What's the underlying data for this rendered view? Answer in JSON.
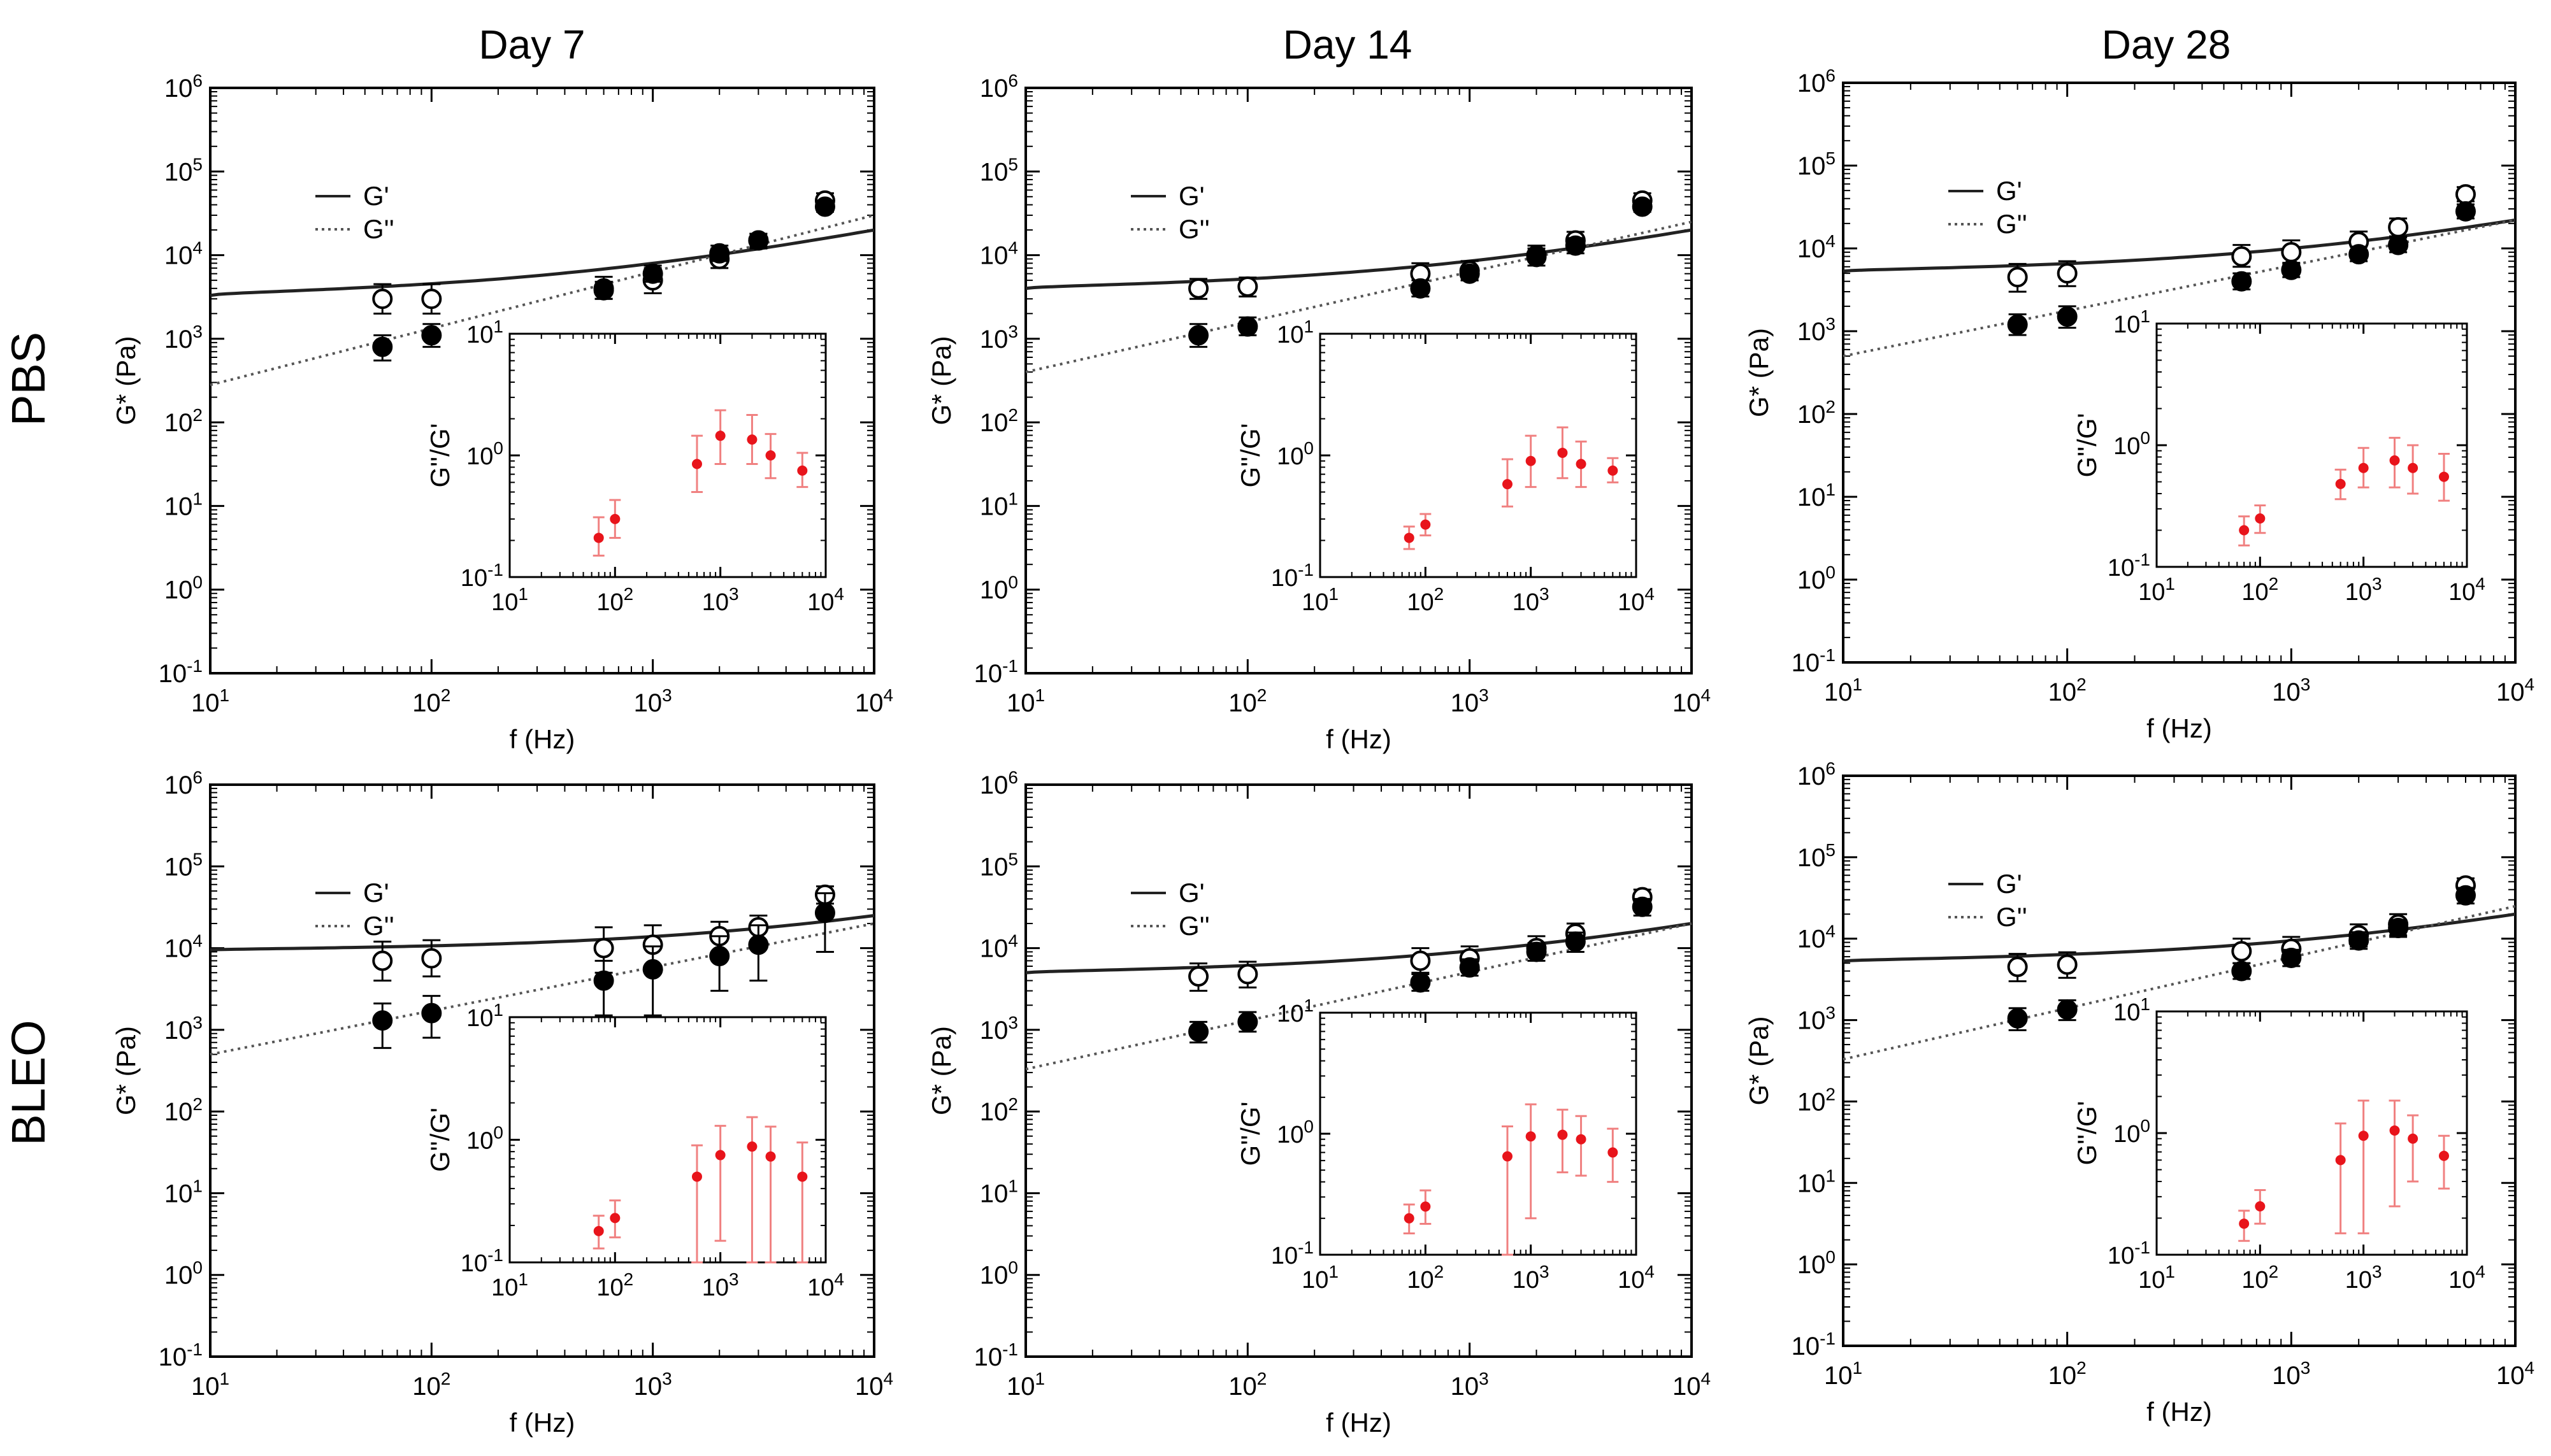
{
  "figure": {
    "columns": [
      "Day 7",
      "Day 14",
      "Day 28"
    ],
    "rows": [
      "PBS",
      "BLEO"
    ]
  },
  "chart_data": [
    {
      "type": "scatter",
      "id": "pbs-day7",
      "row": "PBS",
      "column": "Day 7",
      "title": "",
      "xlabel": "f (Hz)",
      "ylabel": "G* (Pa)",
      "xscale": "log",
      "yscale": "log",
      "xlim": [
        10,
        10000
      ],
      "ylim": [
        0.1,
        1000000
      ],
      "legend": {
        "position": "upper-left",
        "entries": [
          "G'",
          "G''"
        ]
      },
      "series": [
        {
          "name": "G' (open)",
          "x": [
            60,
            100,
            600,
            1000,
            2000,
            3000,
            6000
          ],
          "y": [
            3000,
            3000,
            4000,
            5000,
            9000,
            15000,
            45000
          ],
          "err_lo": [
            1000,
            1000,
            1000,
            1500,
            2000,
            3000,
            8000
          ],
          "err_hi": [
            1500,
            1500,
            1500,
            2000,
            3000,
            3000,
            10000
          ]
        },
        {
          "name": "G'' (filled)",
          "x": [
            60,
            100,
            600,
            1000,
            2000,
            3000,
            6000
          ],
          "y": [
            800,
            1100,
            3800,
            6000,
            10500,
            15000,
            38000
          ],
          "err_lo": [
            250,
            300,
            800,
            1200,
            2000,
            2500,
            5000
          ],
          "err_hi": [
            300,
            400,
            1000,
            1500,
            2500,
            3000,
            6000
          ]
        }
      ],
      "fit": {
        "gp_start": 3300,
        "gp_end": 20000,
        "gpp_start": 280,
        "gpp_end": 30000
      },
      "inset": {
        "ylabel": "G''/G'",
        "xlim": [
          10,
          10000
        ],
        "ylim": [
          0.1,
          10
        ],
        "x": [
          70,
          100,
          600,
          1000,
          2000,
          3000,
          6000
        ],
        "y": [
          0.21,
          0.3,
          0.85,
          1.45,
          1.35,
          1.0,
          0.75
        ],
        "err_lo": [
          0.06,
          0.09,
          0.35,
          0.6,
          0.5,
          0.35,
          0.2
        ],
        "err_hi": [
          0.1,
          0.13,
          0.6,
          0.9,
          0.8,
          0.5,
          0.3
        ]
      }
    },
    {
      "type": "scatter",
      "id": "pbs-day14",
      "row": "PBS",
      "column": "Day 14",
      "title": "",
      "xlabel": "f (Hz)",
      "ylabel": "G* (Pa)",
      "xscale": "log",
      "yscale": "log",
      "xlim": [
        10,
        10000
      ],
      "ylim": [
        0.1,
        1000000
      ],
      "legend": {
        "position": "upper-left",
        "entries": [
          "G'",
          "G''"
        ]
      },
      "series": [
        {
          "name": "G' (open)",
          "x": [
            60,
            100,
            600,
            1000,
            2000,
            3000,
            6000
          ],
          "y": [
            4000,
            4200,
            6000,
            6500,
            10000,
            15000,
            45000
          ],
          "err_lo": [
            1000,
            1000,
            1500,
            1500,
            2500,
            3000,
            8000
          ],
          "err_hi": [
            1200,
            1200,
            2000,
            2000,
            3000,
            4000,
            10000
          ]
        },
        {
          "name": "G'' (filled)",
          "x": [
            60,
            100,
            600,
            1000,
            2000,
            3000,
            6000
          ],
          "y": [
            1100,
            1400,
            4000,
            6000,
            9500,
            13000,
            38000
          ],
          "err_lo": [
            300,
            300,
            800,
            1000,
            2000,
            2500,
            5000
          ],
          "err_hi": [
            400,
            400,
            1000,
            1200,
            2500,
            3000,
            6000
          ]
        }
      ],
      "fit": {
        "gp_start": 4000,
        "gp_end": 20000,
        "gpp_start": 400,
        "gpp_end": 25000
      },
      "inset": {
        "ylabel": "G''/G'",
        "xlim": [
          10,
          10000
        ],
        "ylim": [
          0.1,
          10
        ],
        "x": [
          70,
          100,
          600,
          1000,
          2000,
          3000,
          6000
        ],
        "y": [
          0.21,
          0.27,
          0.58,
          0.9,
          1.05,
          0.85,
          0.75
        ],
        "err_lo": [
          0.04,
          0.05,
          0.2,
          0.35,
          0.4,
          0.3,
          0.15
        ],
        "err_hi": [
          0.05,
          0.06,
          0.35,
          0.55,
          0.65,
          0.45,
          0.2
        ]
      }
    },
    {
      "type": "scatter",
      "id": "pbs-day28",
      "row": "PBS",
      "column": "Day 28",
      "title": "",
      "xlabel": "f (Hz)",
      "ylabel": "G* (Pa)",
      "xscale": "log",
      "yscale": "log",
      "xlim": [
        10,
        10000
      ],
      "ylim": [
        0.1,
        1000000
      ],
      "legend": {
        "position": "upper-left",
        "entries": [
          "G'",
          "G''"
        ]
      },
      "series": [
        {
          "name": "G' (open)",
          "x": [
            60,
            100,
            600,
            1000,
            2000,
            3000,
            6000
          ],
          "y": [
            4500,
            5000,
            8000,
            9000,
            12000,
            18000,
            45000
          ],
          "err_lo": [
            1500,
            1500,
            2000,
            2500,
            3000,
            4000,
            8000
          ],
          "err_hi": [
            2000,
            2000,
            3000,
            3500,
            4000,
            5000,
            10000
          ]
        },
        {
          "name": "G'' (filled)",
          "x": [
            60,
            100,
            600,
            1000,
            2000,
            3000,
            6000
          ],
          "y": [
            1200,
            1500,
            4000,
            5500,
            8500,
            11000,
            28000
          ],
          "err_lo": [
            300,
            400,
            800,
            1000,
            1500,
            2000,
            5000
          ],
          "err_hi": [
            400,
            500,
            1000,
            1200,
            2000,
            2500,
            6000
          ]
        }
      ],
      "fit": {
        "gp_start": 5300,
        "gp_end": 22000,
        "gpp_start": 500,
        "gpp_end": 22000
      },
      "inset": {
        "ylabel": "G''/G'",
        "xlim": [
          10,
          10000
        ],
        "ylim": [
          0.1,
          10
        ],
        "x": [
          70,
          100,
          600,
          1000,
          2000,
          3000,
          6000
        ],
        "y": [
          0.2,
          0.25,
          0.48,
          0.65,
          0.75,
          0.65,
          0.55
        ],
        "err_lo": [
          0.05,
          0.06,
          0.12,
          0.2,
          0.3,
          0.25,
          0.2
        ],
        "err_hi": [
          0.06,
          0.07,
          0.15,
          0.3,
          0.4,
          0.35,
          0.3
        ]
      }
    },
    {
      "type": "scatter",
      "id": "bleo-day7",
      "row": "BLEO",
      "column": "Day 7",
      "title": "",
      "xlabel": "f (Hz)",
      "ylabel": "G* (Pa)",
      "xscale": "log",
      "yscale": "log",
      "xlim": [
        10,
        10000
      ],
      "ylim": [
        0.1,
        1000000
      ],
      "legend": {
        "position": "upper-left",
        "entries": [
          "G'",
          "G''"
        ]
      },
      "series": [
        {
          "name": "G' (open)",
          "x": [
            60,
            100,
            600,
            1000,
            2000,
            3000,
            6000
          ],
          "y": [
            7000,
            7500,
            10000,
            11000,
            14000,
            18000,
            45000
          ],
          "err_lo": [
            3000,
            3000,
            5000,
            5000,
            5000,
            6000,
            10000
          ],
          "err_hi": [
            5000,
            5000,
            8000,
            8000,
            7000,
            7000,
            12000
          ]
        },
        {
          "name": "G'' (filled)",
          "x": [
            60,
            100,
            600,
            1000,
            2000,
            3000,
            6000
          ],
          "y": [
            1300,
            1600,
            4000,
            5500,
            8000,
            11000,
            27000
          ],
          "err_lo": [
            700,
            800,
            2500,
            4000,
            5000,
            7000,
            18000
          ],
          "err_hi": [
            800,
            1000,
            3000,
            5000,
            6000,
            8000,
            20000
          ]
        }
      ],
      "fit": {
        "gp_start": 9500,
        "gp_end": 25000,
        "gpp_start": 500,
        "gpp_end": 20000
      },
      "inset": {
        "ylabel": "G''/G'",
        "xlim": [
          10,
          10000
        ],
        "ylim": [
          0.1,
          10
        ],
        "x": [
          70,
          100,
          600,
          1000,
          2000,
          3000,
          6000
        ],
        "y": [
          0.18,
          0.23,
          0.5,
          0.75,
          0.88,
          0.73,
          0.5
        ],
        "err_lo": [
          0.05,
          0.07,
          0.4,
          0.6,
          0.78,
          0.63,
          0.4
        ],
        "err_hi": [
          0.06,
          0.09,
          0.4,
          0.55,
          0.65,
          0.55,
          0.45
        ]
      }
    },
    {
      "type": "scatter",
      "id": "bleo-day14",
      "row": "BLEO",
      "column": "Day 14",
      "title": "",
      "xlabel": "f (Hz)",
      "ylabel": "G* (Pa)",
      "xscale": "log",
      "yscale": "log",
      "xlim": [
        10,
        10000
      ],
      "ylim": [
        0.1,
        1000000
      ],
      "legend": {
        "position": "upper-left",
        "entries": [
          "G'",
          "G''"
        ]
      },
      "series": [
        {
          "name": "G' (open)",
          "x": [
            60,
            100,
            600,
            1000,
            2000,
            3000,
            6000
          ],
          "y": [
            4500,
            4800,
            7000,
            7500,
            10000,
            15000,
            42000
          ],
          "err_lo": [
            1500,
            1500,
            2000,
            2000,
            3000,
            4000,
            8000
          ],
          "err_hi": [
            2000,
            2000,
            3000,
            3000,
            4000,
            5000,
            10000
          ]
        },
        {
          "name": "G'' (filled)",
          "x": [
            60,
            100,
            600,
            1000,
            2000,
            3000,
            6000
          ],
          "y": [
            950,
            1250,
            3800,
            5800,
            9000,
            12000,
            32000
          ],
          "err_lo": [
            250,
            300,
            800,
            1200,
            2000,
            3000,
            7000
          ],
          "err_hi": [
            300,
            400,
            1000,
            1500,
            2500,
            3500,
            8000
          ]
        }
      ],
      "fit": {
        "gp_start": 5000,
        "gp_end": 20000,
        "gpp_start": 330,
        "gpp_end": 20000
      },
      "inset": {
        "ylabel": "G''/G'",
        "xlim": [
          10,
          10000
        ],
        "ylim": [
          0.1,
          10
        ],
        "x": [
          70,
          100,
          600,
          1000,
          2000,
          3000,
          6000
        ],
        "y": [
          0.2,
          0.25,
          0.65,
          0.95,
          0.98,
          0.9,
          0.7
        ],
        "err_lo": [
          0.05,
          0.07,
          0.55,
          0.75,
          0.5,
          0.45,
          0.3
        ],
        "err_hi": [
          0.06,
          0.09,
          0.5,
          0.8,
          0.6,
          0.5,
          0.4
        ]
      }
    },
    {
      "type": "scatter",
      "id": "bleo-day28",
      "row": "BLEO",
      "column": "Day 28",
      "title": "",
      "xlabel": "f (Hz)",
      "ylabel": "G* (Pa)",
      "xscale": "log",
      "yscale": "log",
      "xlim": [
        10,
        10000
      ],
      "ylim": [
        0.1,
        1000000
      ],
      "legend": {
        "position": "upper-left",
        "entries": [
          "G'",
          "G''"
        ]
      },
      "series": [
        {
          "name": "G' (open)",
          "x": [
            60,
            100,
            600,
            1000,
            2000,
            3000,
            6000
          ],
          "y": [
            4500,
            4800,
            7000,
            7500,
            11000,
            15000,
            45000
          ],
          "err_lo": [
            1500,
            1500,
            2000,
            2000,
            3000,
            4000,
            8000
          ],
          "err_hi": [
            2000,
            2000,
            3000,
            3000,
            4000,
            5000,
            10000
          ]
        },
        {
          "name": "G'' (filled)",
          "x": [
            60,
            100,
            600,
            1000,
            2000,
            3000,
            6000
          ],
          "y": [
            1050,
            1350,
            4000,
            5800,
            9500,
            13500,
            34000
          ],
          "err_lo": [
            300,
            350,
            800,
            1200,
            2000,
            3000,
            7000
          ],
          "err_hi": [
            350,
            400,
            1000,
            1500,
            2500,
            3500,
            8000
          ]
        }
      ],
      "fit": {
        "gp_start": 5300,
        "gp_end": 20000,
        "gpp_start": 330,
        "gpp_end": 25000
      },
      "inset": {
        "ylabel": "G''/G'",
        "xlim": [
          10,
          10000
        ],
        "ylim": [
          0.1,
          10
        ],
        "x": [
          70,
          100,
          600,
          1000,
          2000,
          3000,
          6000
        ],
        "y": [
          0.18,
          0.25,
          0.6,
          0.95,
          1.05,
          0.9,
          0.65
        ],
        "err_lo": [
          0.05,
          0.07,
          0.45,
          0.8,
          0.8,
          0.5,
          0.3
        ],
        "err_hi": [
          0.05,
          0.09,
          0.6,
          0.9,
          0.8,
          0.5,
          0.3
        ]
      }
    }
  ]
}
